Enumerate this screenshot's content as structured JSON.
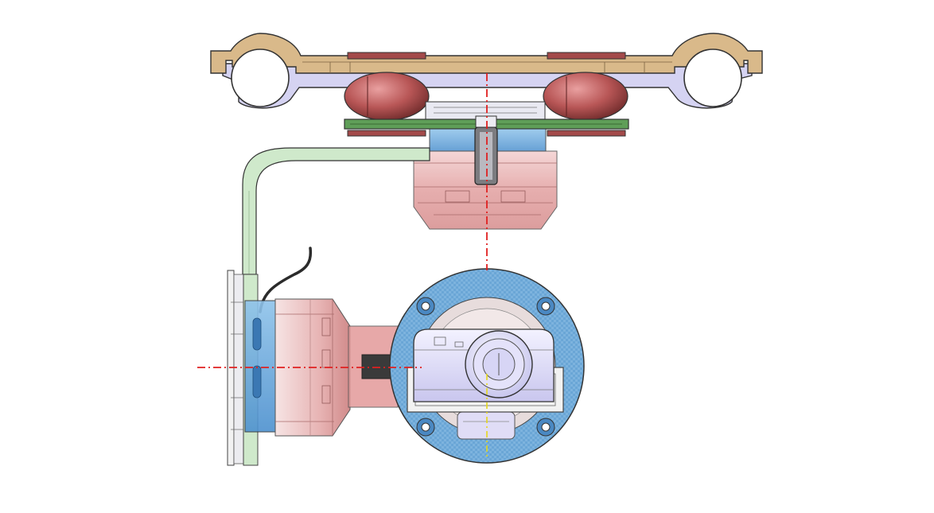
{
  "drawing": {
    "motor_label_main": "",
    "motor_label_sub": "",
    "colors": {
      "mount_tan": "#d9b98a",
      "mount_lavender": "#d5d3f2",
      "damper_red": "#a34a4a",
      "board_green": "#5f9e58",
      "motor_pink": "#e9aeae",
      "motor_blue": "#5b9ed8",
      "arm_green": "#cfe9cb",
      "ring_blue": "#6aa6d6",
      "camera_lavender": "#dedcf6",
      "centerline_red": "#e02020",
      "centerline_yellow": "#e6d81a"
    },
    "icons": [
      "mount-plate-icon",
      "damper-ball-icon",
      "yaw-motor-icon",
      "pitch-motor-icon",
      "camera-icon"
    ]
  }
}
